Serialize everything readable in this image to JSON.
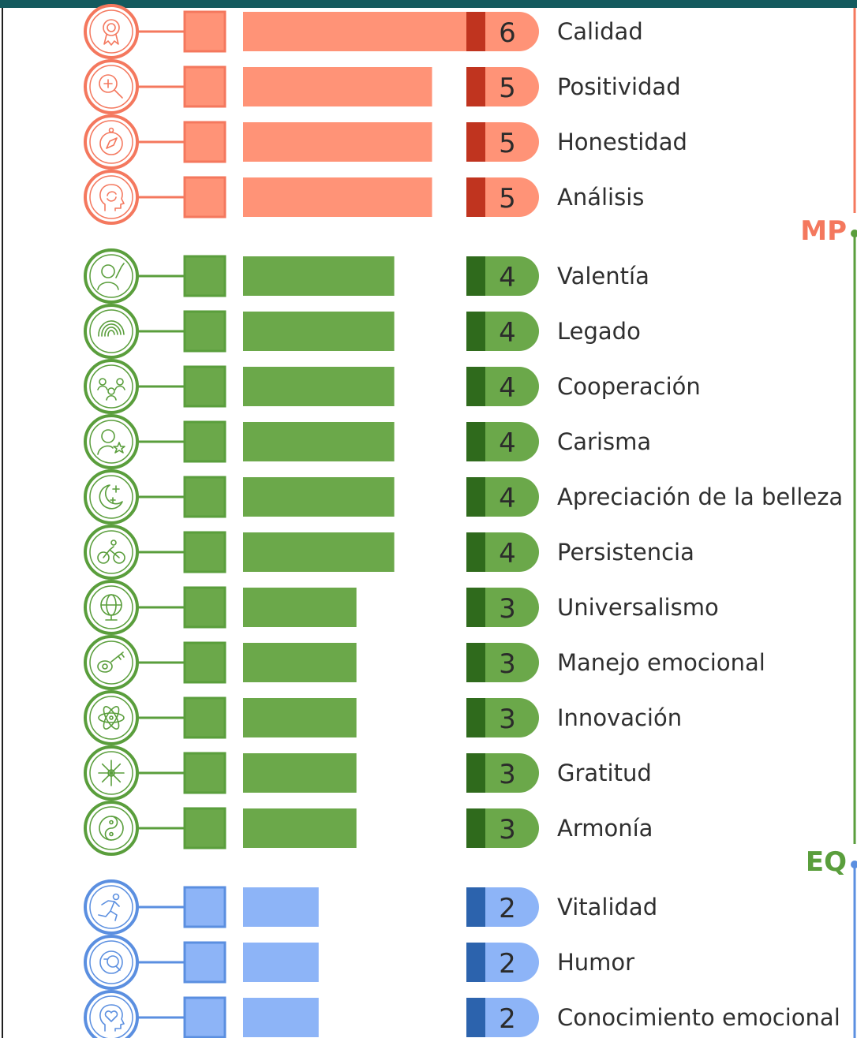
{
  "chart_data": {
    "type": "bar",
    "orientation": "horizontal",
    "grid": false,
    "groups": [
      {
        "tag": "MP",
        "color": "#f4785e",
        "bar_color": "#ff9377",
        "dark_color": "#c0341f"
      },
      {
        "tag": "EQ",
        "color": "#5a9e3c",
        "bar_color": "#6ba84a",
        "dark_color": "#2f6a1c"
      },
      {
        "tag": "",
        "color": "#5b8fe0",
        "bar_color": "#8db4f7",
        "dark_color": "#2c63ad"
      }
    ],
    "rows": [
      {
        "label": "Calidad",
        "value": 6,
        "group": 0,
        "icon": "award-ribbon-icon"
      },
      {
        "label": "Positividad",
        "value": 5,
        "group": 0,
        "icon": "zoom-in-icon"
      },
      {
        "label": "Honestidad",
        "value": 5,
        "group": 0,
        "icon": "compass-icon"
      },
      {
        "label": "Análisis",
        "value": 5,
        "group": 0,
        "icon": "head-cycle-icon"
      },
      {
        "label": "Valentía",
        "value": 4,
        "group": 1,
        "icon": "person-torch-icon"
      },
      {
        "label": "Legado",
        "value": 4,
        "group": 1,
        "icon": "fingerprint-icon"
      },
      {
        "label": "Cooperación",
        "value": 4,
        "group": 1,
        "icon": "team-icon"
      },
      {
        "label": "Carisma",
        "value": 4,
        "group": 1,
        "icon": "person-star-icon"
      },
      {
        "label": "Apreciación de la belleza",
        "value": 4,
        "group": 1,
        "icon": "moon-stars-icon"
      },
      {
        "label": "Persistencia",
        "value": 4,
        "group": 1,
        "icon": "cyclist-icon"
      },
      {
        "label": "Universalismo",
        "value": 3,
        "group": 1,
        "icon": "globe-icon"
      },
      {
        "label": "Manejo emocional",
        "value": 3,
        "group": 1,
        "icon": "key-icon"
      },
      {
        "label": "Innovación",
        "value": 3,
        "group": 1,
        "icon": "atom-icon"
      },
      {
        "label": "Gratitud",
        "value": 3,
        "group": 1,
        "icon": "snowflake-icon"
      },
      {
        "label": "Armonía",
        "value": 3,
        "group": 1,
        "icon": "yin-yang-icon"
      },
      {
        "label": "Vitalidad",
        "value": 2,
        "group": 2,
        "icon": "runner-icon"
      },
      {
        "label": "Humor",
        "value": 2,
        "group": 2,
        "icon": "laugh-face-icon"
      },
      {
        "label": "Conocimiento emocional",
        "value": 2,
        "group": 2,
        "icon": "head-heart-icon"
      }
    ]
  }
}
